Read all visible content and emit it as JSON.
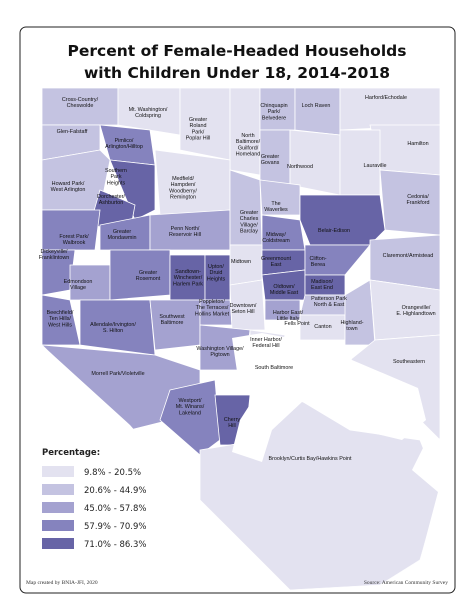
{
  "title": [
    "Percent of Female-Headed Households",
    "with Children Under 18, 2014-2018"
  ],
  "legend": {
    "title": "Percentage:",
    "entries": [
      {
        "label": "9.8% - 20.5%",
        "color": "#e3e2f0"
      },
      {
        "label": "20.6% - 44.9%",
        "color": "#c4c3e1"
      },
      {
        "label": "45.0% - 57.8%",
        "color": "#a4a2d0"
      },
      {
        "label": "57.9% - 70.9%",
        "color": "#8583be"
      },
      {
        "label": "71.0% - 86.3%",
        "color": "#6764a6"
      }
    ]
  },
  "neighborhoods": [
    {
      "label": [
        "Cross-Country/",
        "Cheswolde"
      ]
    },
    {
      "label": [
        "Mt. Washington/",
        "Coldspring"
      ]
    },
    {
      "label": [
        "Greater",
        "Roland",
        "Park/",
        "Poplar Hill"
      ]
    },
    {
      "label": [
        "North",
        "Baltimore/",
        "Guilford/",
        "Homeland"
      ]
    },
    {
      "label": [
        "Chinquapin",
        "Park/",
        "Belvedere"
      ]
    },
    {
      "label": [
        "Loch Raven"
      ]
    },
    {
      "label": [
        "Harford/Echodale"
      ]
    },
    {
      "label": [
        "Glen-Falstaff"
      ]
    },
    {
      "label": [
        "Pimlico/",
        "Arlington/Hilltop"
      ]
    },
    {
      "label": [
        "Hamilton"
      ]
    },
    {
      "label": [
        "Southern",
        "Park",
        "Heights"
      ]
    },
    {
      "label": [
        "Greater",
        "Govans"
      ]
    },
    {
      "label": [
        "Northwood"
      ]
    },
    {
      "label": [
        "Lauraville"
      ]
    },
    {
      "label": [
        "Howard Park/",
        "West Arlington"
      ]
    },
    {
      "label": [
        "Dorchester/",
        "Ashburton"
      ]
    },
    {
      "label": [
        "Medfield/",
        "Hampden/",
        "Woodberry/",
        "Remington"
      ]
    },
    {
      "label": [
        "Cedonia/",
        "Frankford"
      ]
    },
    {
      "label": [
        "Greater",
        "Charles",
        "Village/",
        "Barclay"
      ]
    },
    {
      "label": [
        "The",
        "Waverlies"
      ]
    },
    {
      "label": [
        "Forest Park/",
        "Walbrook"
      ]
    },
    {
      "label": [
        "Greater",
        "Mondawmin"
      ]
    },
    {
      "label": [
        "Penn North/",
        "Reservoir Hill"
      ]
    },
    {
      "label": [
        "Belair-Edison"
      ]
    },
    {
      "label": [
        "Dickeyville/",
        "Franklintown"
      ]
    },
    {
      "label": [
        "Midway/",
        "Coldstream"
      ]
    },
    {
      "label": [
        "Claremont/Armistead"
      ]
    },
    {
      "label": [
        "Greenmount",
        "East"
      ]
    },
    {
      "label": [
        "Midtown"
      ]
    },
    {
      "label": [
        "Clifton-",
        "Berea"
      ]
    },
    {
      "label": [
        "Edmondson",
        "Village"
      ]
    },
    {
      "label": [
        "Greater",
        "Rosemont"
      ]
    },
    {
      "label": [
        "Sandtown-",
        "Winchester/",
        "Harlem Park"
      ]
    },
    {
      "label": [
        "Upton/",
        "Druid",
        "Heights"
      ]
    },
    {
      "label": [
        "Oldtown/",
        "Middle East"
      ]
    },
    {
      "label": [
        "Madison/",
        "East End"
      ]
    },
    {
      "label": [
        "Beechfield/",
        "Ten Hills/",
        "West Hills"
      ]
    },
    {
      "label": [
        "Allendale/Irvington/",
        "S. Hilton"
      ]
    },
    {
      "label": [
        "Southwest",
        "Baltimore"
      ]
    },
    {
      "label": [
        "Poppleton/",
        "The Terraces/",
        "Hollins Market"
      ]
    },
    {
      "label": [
        "Downtown/",
        "Seton Hill"
      ]
    },
    {
      "label": [
        "Patterson Park",
        "North & East"
      ]
    },
    {
      "label": [
        "Harbor East/",
        "Little Italy"
      ]
    },
    {
      "label": [
        "Fells Point"
      ]
    },
    {
      "label": [
        "Canton"
      ]
    },
    {
      "label": [
        "Highland-",
        "town"
      ]
    },
    {
      "label": [
        "Orangeville/",
        "E. Highlandtown"
      ]
    },
    {
      "label": [
        "Washington Village/",
        "Pigtown"
      ]
    },
    {
      "label": [
        "Inner Harbor/",
        "Federal Hill"
      ]
    },
    {
      "label": [
        "South Baltimore"
      ]
    },
    {
      "label": [
        "Morrell Park/Violetville"
      ]
    },
    {
      "label": [
        "Southeastern"
      ]
    },
    {
      "label": [
        "Westport/",
        "Mt. Winans/",
        "Lakeland"
      ]
    },
    {
      "label": [
        "Cherry",
        "Hill"
      ]
    },
    {
      "label": [
        "Brooklyn/Curtis Bay/Hawkins Point"
      ]
    }
  ],
  "footer": {
    "credit": "Map created by BNIA-JFI, 2020",
    "source": "Source: American Community Survey"
  }
}
